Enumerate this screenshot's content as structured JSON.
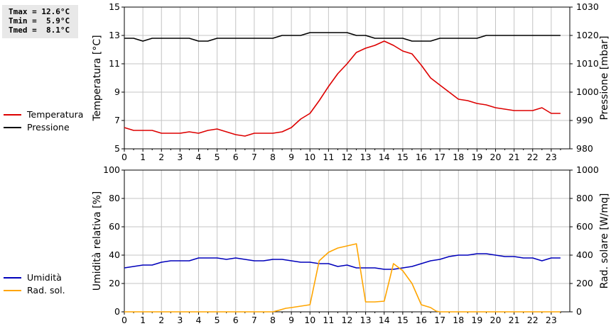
{
  "stats": {
    "tmax": "Tmax = 12.6°C",
    "tmin": "Tmin =  5.9°C",
    "tmed": "Tmed =  8.1°C"
  },
  "chart_data": [
    {
      "type": "line",
      "x_ticks": [
        "0",
        "1",
        "2",
        "3",
        "4",
        "5",
        "6",
        "7",
        "8",
        "9",
        "10",
        "11",
        "12",
        "13",
        "14",
        "15",
        "16",
        "17",
        "18",
        "19",
        "20",
        "21",
        "22",
        "23"
      ],
      "ylabel": "Temperatura [°C]",
      "ylabel2": "Pressione [mbar]",
      "ylim": [
        5,
        15
      ],
      "y_ticks": [
        "5",
        "7",
        "9",
        "11",
        "13",
        "15"
      ],
      "y2lim": [
        980,
        1030
      ],
      "y2_ticks": [
        "980",
        "990",
        "1000",
        "1010",
        "1020",
        "1030"
      ],
      "grid": true,
      "legend": "left",
      "series": [
        {
          "name": "Temperatura",
          "color": "#dd0000",
          "axis": "left",
          "x": [
            0,
            0.5,
            1,
            1.5,
            2,
            2.5,
            3,
            3.5,
            4,
            4.5,
            5,
            5.5,
            6,
            6.5,
            7,
            7.5,
            8,
            8.5,
            9,
            9.5,
            10,
            10.5,
            11,
            11.5,
            12,
            12.5,
            13,
            13.5,
            14,
            14.5,
            15,
            15.5,
            16,
            16.5,
            17,
            17.5,
            18,
            18.5,
            19,
            19.5,
            20,
            20.5,
            21,
            21.5,
            22,
            22.5,
            23,
            23.5
          ],
          "values": [
            6.5,
            6.3,
            6.3,
            6.3,
            6.1,
            6.1,
            6.1,
            6.2,
            6.1,
            6.3,
            6.4,
            6.2,
            6.0,
            5.9,
            6.1,
            6.1,
            6.1,
            6.2,
            6.5,
            7.1,
            7.5,
            8.4,
            9.4,
            10.3,
            11.0,
            11.8,
            12.1,
            12.3,
            12.6,
            12.3,
            11.9,
            11.7,
            10.9,
            10.0,
            9.5,
            9.0,
            8.5,
            8.4,
            8.2,
            8.1,
            7.9,
            7.8,
            7.7,
            7.7,
            7.7,
            7.9,
            7.5,
            7.5
          ]
        },
        {
          "name": "Pressione",
          "color": "#000000",
          "axis": "right",
          "x": [
            0,
            0.5,
            1,
            1.5,
            2,
            2.5,
            3,
            3.5,
            4,
            4.5,
            5,
            5.5,
            6,
            6.5,
            7,
            7.5,
            8,
            8.5,
            9,
            9.5,
            10,
            10.5,
            11,
            11.5,
            12,
            12.5,
            13,
            13.5,
            14,
            14.5,
            15,
            15.5,
            16,
            16.5,
            17,
            17.5,
            18,
            18.5,
            19,
            19.5,
            20,
            20.5,
            21,
            21.5,
            22,
            22.5,
            23,
            23.5
          ],
          "values": [
            1019,
            1019,
            1018,
            1019,
            1019,
            1019,
            1019,
            1019,
            1018,
            1018,
            1019,
            1019,
            1019,
            1019,
            1019,
            1019,
            1019,
            1020,
            1020,
            1020,
            1021,
            1021,
            1021,
            1021,
            1021,
            1020,
            1020,
            1019,
            1019,
            1019,
            1019,
            1018,
            1018,
            1018,
            1019,
            1019,
            1019,
            1019,
            1019,
            1020,
            1020,
            1020,
            1020,
            1020,
            1020,
            1020,
            1020,
            1020
          ]
        }
      ]
    },
    {
      "type": "line",
      "x_ticks": [
        "0",
        "1",
        "2",
        "3",
        "4",
        "5",
        "6",
        "7",
        "8",
        "9",
        "10",
        "11",
        "12",
        "13",
        "14",
        "15",
        "16",
        "17",
        "18",
        "19",
        "20",
        "21",
        "22",
        "23"
      ],
      "ylabel": "Umidità relativa [%]",
      "ylabel2": "Rad. solare [W/mq]",
      "ylim": [
        0,
        100
      ],
      "y_ticks": [
        "0",
        "20",
        "40",
        "60",
        "80",
        "100"
      ],
      "y2lim": [
        0,
        1000
      ],
      "y2_ticks": [
        "0",
        "200",
        "400",
        "600",
        "800",
        "1000"
      ],
      "grid": true,
      "legend": "left",
      "series": [
        {
          "name": "Umidità",
          "color": "#0000bb",
          "axis": "left",
          "x": [
            0,
            0.5,
            1,
            1.5,
            2,
            2.5,
            3,
            3.5,
            4,
            4.5,
            5,
            5.5,
            6,
            6.5,
            7,
            7.5,
            8,
            8.5,
            9,
            9.5,
            10,
            10.5,
            11,
            11.5,
            12,
            12.5,
            13,
            13.5,
            14,
            14.5,
            15,
            15.5,
            16,
            16.5,
            17,
            17.5,
            18,
            18.5,
            19,
            19.5,
            20,
            20.5,
            21,
            21.5,
            22,
            22.5,
            23,
            23.5
          ],
          "values": [
            31,
            32,
            33,
            33,
            35,
            36,
            36,
            36,
            38,
            38,
            38,
            37,
            38,
            37,
            36,
            36,
            37,
            37,
            36,
            35,
            35,
            34,
            34,
            32,
            33,
            31,
            31,
            31,
            30,
            30,
            31,
            32,
            34,
            36,
            37,
            39,
            40,
            40,
            41,
            41,
            40,
            39,
            39,
            38,
            38,
            36,
            38,
            38
          ]
        },
        {
          "name": "Rad. sol.",
          "color": "#ffa500",
          "axis": "right",
          "x": [
            0,
            1,
            2,
            3,
            4,
            5,
            6,
            7,
            8,
            8.3,
            8.7,
            9,
            9.5,
            10,
            10.5,
            11,
            11.5,
            12,
            12.5,
            13,
            13.5,
            14,
            14.5,
            15,
            15.5,
            16,
            16.5,
            16.8,
            17,
            18,
            19,
            20,
            21,
            22,
            23,
            23.5
          ],
          "values": [
            0,
            0,
            0,
            0,
            0,
            0,
            0,
            0,
            0,
            10,
            25,
            30,
            40,
            50,
            360,
            420,
            450,
            465,
            480,
            70,
            70,
            75,
            340,
            290,
            200,
            50,
            30,
            5,
            0,
            0,
            0,
            0,
            0,
            0,
            0,
            0
          ]
        }
      ]
    }
  ]
}
